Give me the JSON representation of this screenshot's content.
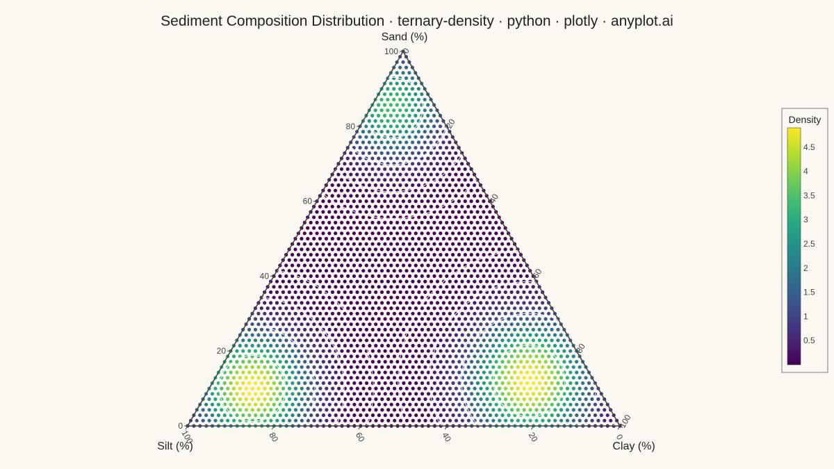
{
  "chart_data": {
    "type": "ternary-density",
    "title": "Sediment Composition Distribution · ternary-density · python · plotly · anyplot.ai",
    "axes": {
      "top": {
        "label": "Sand (%)",
        "ticks": [
          "0",
          "20",
          "40",
          "60",
          "80",
          "100"
        ]
      },
      "left": {
        "label": "Silt (%)",
        "ticks": [
          "0",
          "20",
          "40",
          "60",
          "80",
          "100"
        ]
      },
      "right": {
        "label": "Clay (%)",
        "ticks": [
          "0",
          "20",
          "40",
          "60",
          "80",
          "100"
        ]
      }
    },
    "range": [
      0,
      100
    ],
    "density_peaks": [
      {
        "sand": 85,
        "silt": 10,
        "clay": 5,
        "peak_density": 3.3,
        "spread": 11
      },
      {
        "sand": 10,
        "silt": 80,
        "clay": 10,
        "peak_density": 4.9,
        "spread": 12
      },
      {
        "sand": 12,
        "silt": 15,
        "clay": 73,
        "peak_density": 4.9,
        "spread": 13
      }
    ],
    "colorbar": {
      "title": "Density",
      "colorscale": "Viridis",
      "range": [
        0,
        4.9
      ],
      "ticks": [
        0.5,
        1,
        1.5,
        2,
        2.5,
        3,
        3.5,
        4,
        4.5
      ]
    },
    "contour_lines": "white",
    "grid": false
  }
}
